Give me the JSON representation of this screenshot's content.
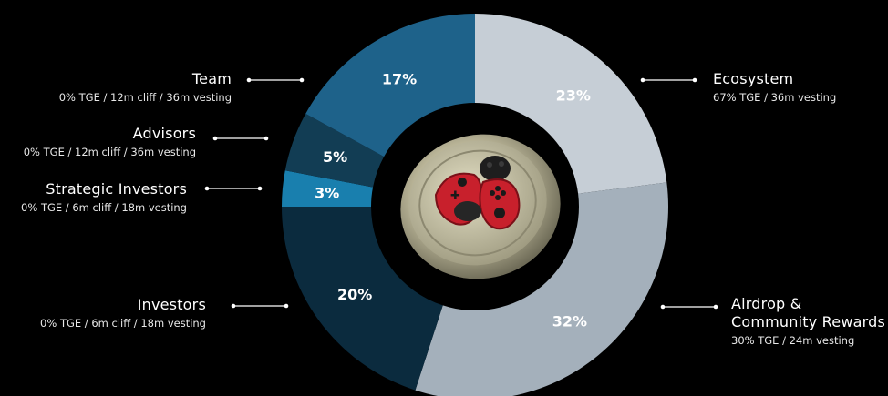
{
  "chart_data": {
    "type": "pie",
    "donut": true,
    "series": [
      {
        "name": "Ecosystem",
        "value": 23,
        "label": "23%",
        "vesting": "67% TGE / 36m vesting",
        "color": "#c6ced6"
      },
      {
        "name": "Airdrop & Community Rewards",
        "name_lines": [
          "Airdrop &",
          "Community Rewards"
        ],
        "value": 32,
        "label": "32%",
        "vesting": "30% TGE / 24m vesting",
        "color": "#a4b0bb"
      },
      {
        "name": "Investors",
        "value": 20,
        "label": "20%",
        "vesting": "0% TGE / 6m cliff / 18m vesting",
        "color": "#0b2b3e"
      },
      {
        "name": "Strategic Investors",
        "value": 3,
        "label": "3%",
        "vesting": "0% TGE / 6m cliff / 18m vesting",
        "color": "#197fae"
      },
      {
        "name": "Advisors",
        "value": 5,
        "label": "5%",
        "vesting": "0% TGE / 12m cliff / 36m vesting",
        "color": "#123d54"
      },
      {
        "name": "Team",
        "value": 17,
        "label": "17%",
        "vesting": "0% TGE / 12m cliff / 36m vesting",
        "color": "#1e628a"
      }
    ],
    "legend": "callouts",
    "center_image": "ladybug-gamepad-coin-logo"
  }
}
